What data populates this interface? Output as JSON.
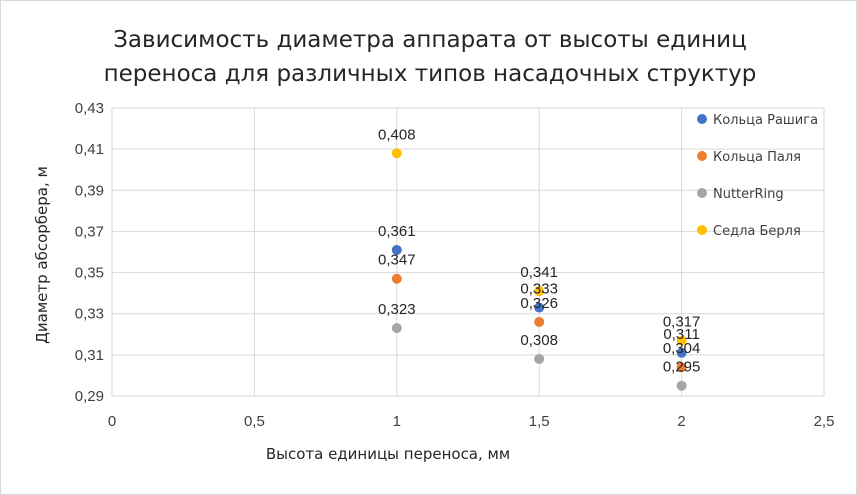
{
  "chart_data": {
    "type": "scatter",
    "title_lines": [
      "Зависимость диаметра аппарата от высоты единиц",
      "переноса для различных типов насадочных структур"
    ],
    "xlabel": "Высота единицы переноса, мм",
    "ylabel": "Диаметр абсорбера, м",
    "xlim": [
      0,
      2.5
    ],
    "ylim": [
      0.29,
      0.43
    ],
    "x_ticks": [
      {
        "value": 0,
        "label": "0"
      },
      {
        "value": 0.5,
        "label": "0,5"
      },
      {
        "value": 1,
        "label": "1"
      },
      {
        "value": 1.5,
        "label": "1,5"
      },
      {
        "value": 2,
        "label": "2"
      },
      {
        "value": 2.5,
        "label": "2,5"
      }
    ],
    "y_ticks": [
      {
        "value": 0.29,
        "label": "0,29"
      },
      {
        "value": 0.31,
        "label": "0,31"
      },
      {
        "value": 0.33,
        "label": "0,33"
      },
      {
        "value": 0.35,
        "label": "0,35"
      },
      {
        "value": 0.37,
        "label": "0,37"
      },
      {
        "value": 0.39,
        "label": "0,39"
      },
      {
        "value": 0.41,
        "label": "0,41"
      },
      {
        "value": 0.43,
        "label": "0,43"
      }
    ],
    "grid": true,
    "legend_position": "right",
    "series": [
      {
        "name": "Кольца Рашига",
        "color": "#4472C4",
        "points": [
          {
            "x": 1,
            "y": 0.361,
            "label": "0,361"
          },
          {
            "x": 1.5,
            "y": 0.333,
            "label": "0,333"
          },
          {
            "x": 2,
            "y": 0.311,
            "label": "0,311"
          }
        ]
      },
      {
        "name": "Кольца Паля",
        "color": "#ED7D31",
        "points": [
          {
            "x": 1,
            "y": 0.347,
            "label": "0,347"
          },
          {
            "x": 1.5,
            "y": 0.326,
            "label": "0,326"
          },
          {
            "x": 2,
            "y": 0.304,
            "label": "0,304"
          }
        ]
      },
      {
        "name": "NutterRing",
        "color": "#A5A5A5",
        "points": [
          {
            "x": 1,
            "y": 0.323,
            "label": "0,323"
          },
          {
            "x": 1.5,
            "y": 0.308,
            "label": "0,308"
          },
          {
            "x": 2,
            "y": 0.295,
            "label": "0,295"
          }
        ]
      },
      {
        "name": "Седла Берля",
        "color": "#FFC000",
        "points": [
          {
            "x": 1,
            "y": 0.408,
            "label": "0,408"
          },
          {
            "x": 1.5,
            "y": 0.341,
            "label": "0,341"
          },
          {
            "x": 2,
            "y": 0.317,
            "label": "0,317"
          }
        ]
      }
    ]
  }
}
